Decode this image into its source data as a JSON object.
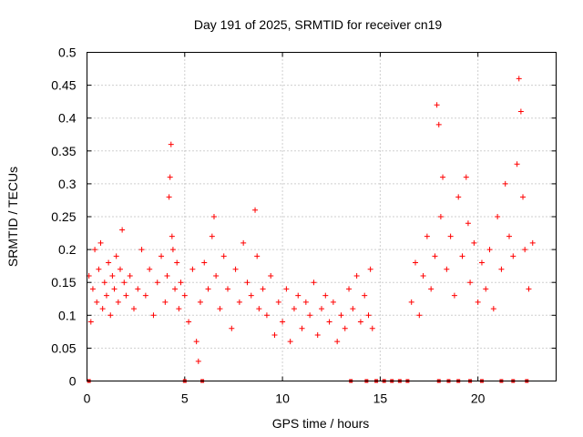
{
  "chart_data": {
    "type": "scatter",
    "title": "Day 191 of 2025, SRMTID for receiver cn19",
    "xlabel": "GPS time / hours",
    "ylabel": "SRMTID / TECUs",
    "xlim": [
      0,
      24
    ],
    "ylim": [
      0,
      0.5
    ],
    "x_ticks": [
      0,
      5,
      10,
      15,
      20
    ],
    "x_tick_labels": [
      "0",
      "5",
      "10",
      "15",
      "20"
    ],
    "y_ticks": [
      0,
      0.05,
      0.1,
      0.15,
      0.2,
      0.25,
      0.3,
      0.35,
      0.4,
      0.45,
      0.5
    ],
    "y_tick_labels": [
      "0",
      "0.05",
      "0.1",
      "0.15",
      "0.2",
      "0.25",
      "0.3",
      "0.35",
      "0.4",
      "0.45",
      "0.5"
    ],
    "grid": true,
    "marker": "+",
    "color": "#ff0000",
    "zero_marker_color": "#e00000",
    "series": [
      {
        "name": "SRMTID",
        "points": [
          [
            0.1,
            0.16
          ],
          [
            0.2,
            0.09
          ],
          [
            0.3,
            0.14
          ],
          [
            0.4,
            0.2
          ],
          [
            0.5,
            0.12
          ],
          [
            0.6,
            0.17
          ],
          [
            0.7,
            0.21
          ],
          [
            0.8,
            0.11
          ],
          [
            0.9,
            0.15
          ],
          [
            1.0,
            0.13
          ],
          [
            1.1,
            0.18
          ],
          [
            1.2,
            0.1
          ],
          [
            1.3,
            0.16
          ],
          [
            1.4,
            0.14
          ],
          [
            1.5,
            0.19
          ],
          [
            1.6,
            0.12
          ],
          [
            1.7,
            0.17
          ],
          [
            1.8,
            0.23
          ],
          [
            1.9,
            0.15
          ],
          [
            2.0,
            0.13
          ],
          [
            2.2,
            0.16
          ],
          [
            2.4,
            0.11
          ],
          [
            2.6,
            0.14
          ],
          [
            2.8,
            0.2
          ],
          [
            3.0,
            0.13
          ],
          [
            3.2,
            0.17
          ],
          [
            3.4,
            0.1
          ],
          [
            3.6,
            0.15
          ],
          [
            3.8,
            0.19
          ],
          [
            4.0,
            0.12
          ],
          [
            4.1,
            0.16
          ],
          [
            4.2,
            0.28
          ],
          [
            4.25,
            0.31
          ],
          [
            4.3,
            0.36
          ],
          [
            4.35,
            0.22
          ],
          [
            4.4,
            0.2
          ],
          [
            4.5,
            0.14
          ],
          [
            4.6,
            0.18
          ],
          [
            4.7,
            0.11
          ],
          [
            4.8,
            0.15
          ],
          [
            5.0,
            0.13
          ],
          [
            5.2,
            0.09
          ],
          [
            5.4,
            0.17
          ],
          [
            5.6,
            0.06
          ],
          [
            5.7,
            0.03
          ],
          [
            5.8,
            0.12
          ],
          [
            6.0,
            0.18
          ],
          [
            6.2,
            0.14
          ],
          [
            6.4,
            0.22
          ],
          [
            6.5,
            0.25
          ],
          [
            6.6,
            0.16
          ],
          [
            6.8,
            0.11
          ],
          [
            7.0,
            0.19
          ],
          [
            7.2,
            0.14
          ],
          [
            7.4,
            0.08
          ],
          [
            7.6,
            0.17
          ],
          [
            7.8,
            0.12
          ],
          [
            8.0,
            0.21
          ],
          [
            8.2,
            0.15
          ],
          [
            8.4,
            0.13
          ],
          [
            8.6,
            0.26
          ],
          [
            8.7,
            0.19
          ],
          [
            8.8,
            0.11
          ],
          [
            9.0,
            0.14
          ],
          [
            9.2,
            0.1
          ],
          [
            9.4,
            0.16
          ],
          [
            9.6,
            0.07
          ],
          [
            9.8,
            0.12
          ],
          [
            10.0,
            0.09
          ],
          [
            10.2,
            0.14
          ],
          [
            10.4,
            0.06
          ],
          [
            10.6,
            0.11
          ],
          [
            10.8,
            0.13
          ],
          [
            11.0,
            0.08
          ],
          [
            11.2,
            0.12
          ],
          [
            11.4,
            0.1
          ],
          [
            11.6,
            0.15
          ],
          [
            11.8,
            0.07
          ],
          [
            12.0,
            0.11
          ],
          [
            12.2,
            0.13
          ],
          [
            12.4,
            0.09
          ],
          [
            12.6,
            0.12
          ],
          [
            12.8,
            0.06
          ],
          [
            13.0,
            0.1
          ],
          [
            13.2,
            0.08
          ],
          [
            13.4,
            0.14
          ],
          [
            13.6,
            0.11
          ],
          [
            13.8,
            0.16
          ],
          [
            14.0,
            0.09
          ],
          [
            14.2,
            0.13
          ],
          [
            14.4,
            0.1
          ],
          [
            14.5,
            0.17
          ],
          [
            14.6,
            0.08
          ],
          [
            16.6,
            0.12
          ],
          [
            16.8,
            0.18
          ],
          [
            17.0,
            0.1
          ],
          [
            17.2,
            0.16
          ],
          [
            17.4,
            0.22
          ],
          [
            17.6,
            0.14
          ],
          [
            17.8,
            0.19
          ],
          [
            17.9,
            0.42
          ],
          [
            18.0,
            0.39
          ],
          [
            18.1,
            0.25
          ],
          [
            18.2,
            0.31
          ],
          [
            18.4,
            0.17
          ],
          [
            18.6,
            0.22
          ],
          [
            18.8,
            0.13
          ],
          [
            19.0,
            0.28
          ],
          [
            19.2,
            0.19
          ],
          [
            19.4,
            0.31
          ],
          [
            19.5,
            0.24
          ],
          [
            19.6,
            0.15
          ],
          [
            19.8,
            0.21
          ],
          [
            20.0,
            0.12
          ],
          [
            20.2,
            0.18
          ],
          [
            20.4,
            0.14
          ],
          [
            20.6,
            0.2
          ],
          [
            20.8,
            0.11
          ],
          [
            21.0,
            0.25
          ],
          [
            21.2,
            0.17
          ],
          [
            21.4,
            0.3
          ],
          [
            21.6,
            0.22
          ],
          [
            21.8,
            0.19
          ],
          [
            22.0,
            0.33
          ],
          [
            22.1,
            0.46
          ],
          [
            22.2,
            0.41
          ],
          [
            22.3,
            0.28
          ],
          [
            22.4,
            0.2
          ],
          [
            22.6,
            0.14
          ],
          [
            22.8,
            0.21
          ]
        ]
      },
      {
        "name": "zero",
        "points": [
          [
            0.1,
            0
          ],
          [
            5.0,
            0
          ],
          [
            5.9,
            0
          ],
          [
            13.5,
            0
          ],
          [
            14.3,
            0
          ],
          [
            14.8,
            0
          ],
          [
            15.2,
            0
          ],
          [
            15.6,
            0
          ],
          [
            16.0,
            0
          ],
          [
            16.4,
            0
          ],
          [
            18.0,
            0
          ],
          [
            18.5,
            0
          ],
          [
            19.0,
            0
          ],
          [
            19.6,
            0
          ],
          [
            20.2,
            0
          ],
          [
            21.2,
            0
          ],
          [
            21.8,
            0
          ],
          [
            22.5,
            0
          ]
        ]
      }
    ]
  }
}
